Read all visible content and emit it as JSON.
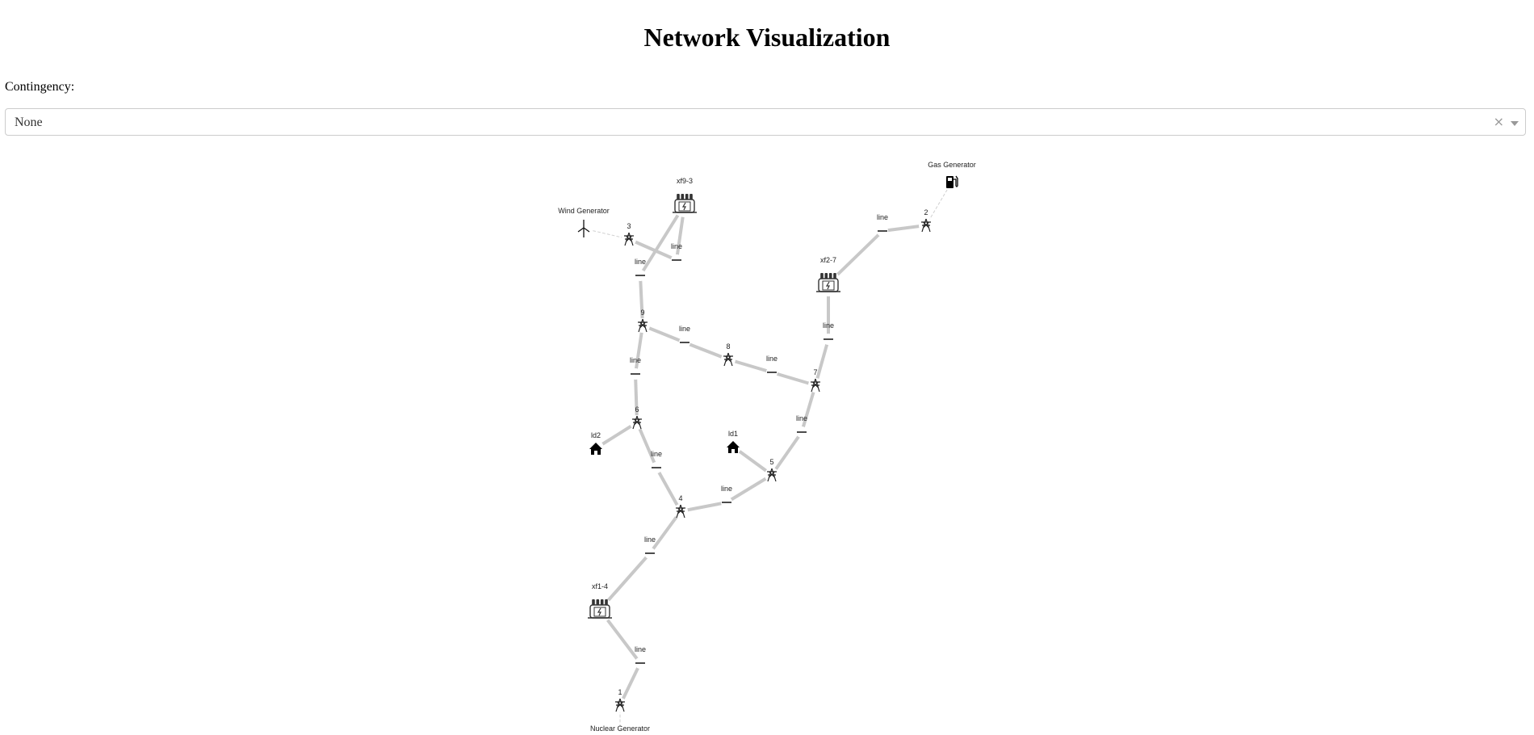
{
  "title": "Network Visualization",
  "contingency": {
    "label": "Contingency:",
    "selected": "None",
    "clear_glyph": "×"
  },
  "graph": {
    "nodes": [
      {
        "id": "wind",
        "label": "Wind Generator",
        "icon": "wind-turbine-icon"
      },
      {
        "id": "b3",
        "label": "3",
        "icon": "transmission-tower-icon"
      },
      {
        "id": "xf93",
        "label": "xf9-3",
        "icon": "transformer-icon"
      },
      {
        "id": "L_xf93_b3",
        "label": "line",
        "icon": "line-dash-icon"
      },
      {
        "id": "L_xf93_b9",
        "label": "line",
        "icon": "line-dash-icon"
      },
      {
        "id": "b9",
        "label": "9",
        "icon": "transmission-tower-icon"
      },
      {
        "id": "L_9_8",
        "label": "line",
        "icon": "line-dash-icon"
      },
      {
        "id": "b8",
        "label": "8",
        "icon": "transmission-tower-icon"
      },
      {
        "id": "L_8_7",
        "label": "line",
        "icon": "line-dash-icon"
      },
      {
        "id": "b7",
        "label": "7",
        "icon": "transmission-tower-icon"
      },
      {
        "id": "L_xf27_7",
        "label": "line",
        "icon": "line-dash-icon"
      },
      {
        "id": "xf27",
        "label": "xf2-7",
        "icon": "transformer-icon"
      },
      {
        "id": "L_xf27_2",
        "label": "line",
        "icon": "line-dash-icon"
      },
      {
        "id": "b2",
        "label": "2",
        "icon": "transmission-tower-icon"
      },
      {
        "id": "gas",
        "label": "Gas Generator",
        "icon": "gas-pump-icon"
      },
      {
        "id": "L_9_6",
        "label": "line",
        "icon": "line-dash-icon"
      },
      {
        "id": "b6",
        "label": "6",
        "icon": "transmission-tower-icon"
      },
      {
        "id": "ld2",
        "label": "ld2",
        "icon": "house-icon"
      },
      {
        "id": "L_6_4",
        "label": "line",
        "icon": "line-dash-icon"
      },
      {
        "id": "L_7_5",
        "label": "line",
        "icon": "line-dash-icon"
      },
      {
        "id": "ld1",
        "label": "ld1",
        "icon": "house-icon"
      },
      {
        "id": "b5",
        "label": "5",
        "icon": "transmission-tower-icon"
      },
      {
        "id": "L_5_4",
        "label": "line",
        "icon": "line-dash-icon"
      },
      {
        "id": "b4",
        "label": "4",
        "icon": "transmission-tower-icon"
      },
      {
        "id": "L_4_xf14",
        "label": "line",
        "icon": "line-dash-icon"
      },
      {
        "id": "xf14",
        "label": "xf1-4",
        "icon": "transformer-icon"
      },
      {
        "id": "L_xf14_1",
        "label": "line",
        "icon": "line-dash-icon"
      },
      {
        "id": "b1",
        "label": "1",
        "icon": "transmission-tower-icon"
      },
      {
        "id": "nuclear",
        "label": "Nuclear Generator",
        "icon": "nuclear-icon"
      }
    ],
    "edges": [
      {
        "from": "wind",
        "to": "b3",
        "style": "dashed"
      },
      {
        "from": "b3",
        "to": "L_xf93_b3",
        "style": "solid"
      },
      {
        "from": "L_xf93_b3",
        "to": "xf93",
        "style": "solid"
      },
      {
        "from": "xf93",
        "to": "L_xf93_b9",
        "style": "solid"
      },
      {
        "from": "L_xf93_b9",
        "to": "b9",
        "style": "solid"
      },
      {
        "from": "b9",
        "to": "L_9_8",
        "style": "solid"
      },
      {
        "from": "L_9_8",
        "to": "b8",
        "style": "solid"
      },
      {
        "from": "b8",
        "to": "L_8_7",
        "style": "solid"
      },
      {
        "from": "L_8_7",
        "to": "b7",
        "style": "solid"
      },
      {
        "from": "b7",
        "to": "L_xf27_7",
        "style": "solid"
      },
      {
        "from": "L_xf27_7",
        "to": "xf27",
        "style": "solid"
      },
      {
        "from": "xf27",
        "to": "L_xf27_2",
        "style": "solid"
      },
      {
        "from": "L_xf27_2",
        "to": "b2",
        "style": "solid"
      },
      {
        "from": "b2",
        "to": "gas",
        "style": "dashed"
      },
      {
        "from": "b9",
        "to": "L_9_6",
        "style": "solid"
      },
      {
        "from": "L_9_6",
        "to": "b6",
        "style": "solid"
      },
      {
        "from": "b6",
        "to": "ld2",
        "style": "solid"
      },
      {
        "from": "b6",
        "to": "L_6_4",
        "style": "solid"
      },
      {
        "from": "L_6_4",
        "to": "b4",
        "style": "solid"
      },
      {
        "from": "b7",
        "to": "L_7_5",
        "style": "solid"
      },
      {
        "from": "L_7_5",
        "to": "b5",
        "style": "solid"
      },
      {
        "from": "ld1",
        "to": "b5",
        "style": "solid"
      },
      {
        "from": "b5",
        "to": "L_5_4",
        "style": "solid"
      },
      {
        "from": "L_5_4",
        "to": "b4",
        "style": "solid"
      },
      {
        "from": "b4",
        "to": "L_4_xf14",
        "style": "solid"
      },
      {
        "from": "L_4_xf14",
        "to": "xf14",
        "style": "solid"
      },
      {
        "from": "xf14",
        "to": "L_xf14_1",
        "style": "solid"
      },
      {
        "from": "L_xf14_1",
        "to": "b1",
        "style": "solid"
      },
      {
        "from": "b1",
        "to": "nuclear",
        "style": "dashed"
      }
    ]
  }
}
